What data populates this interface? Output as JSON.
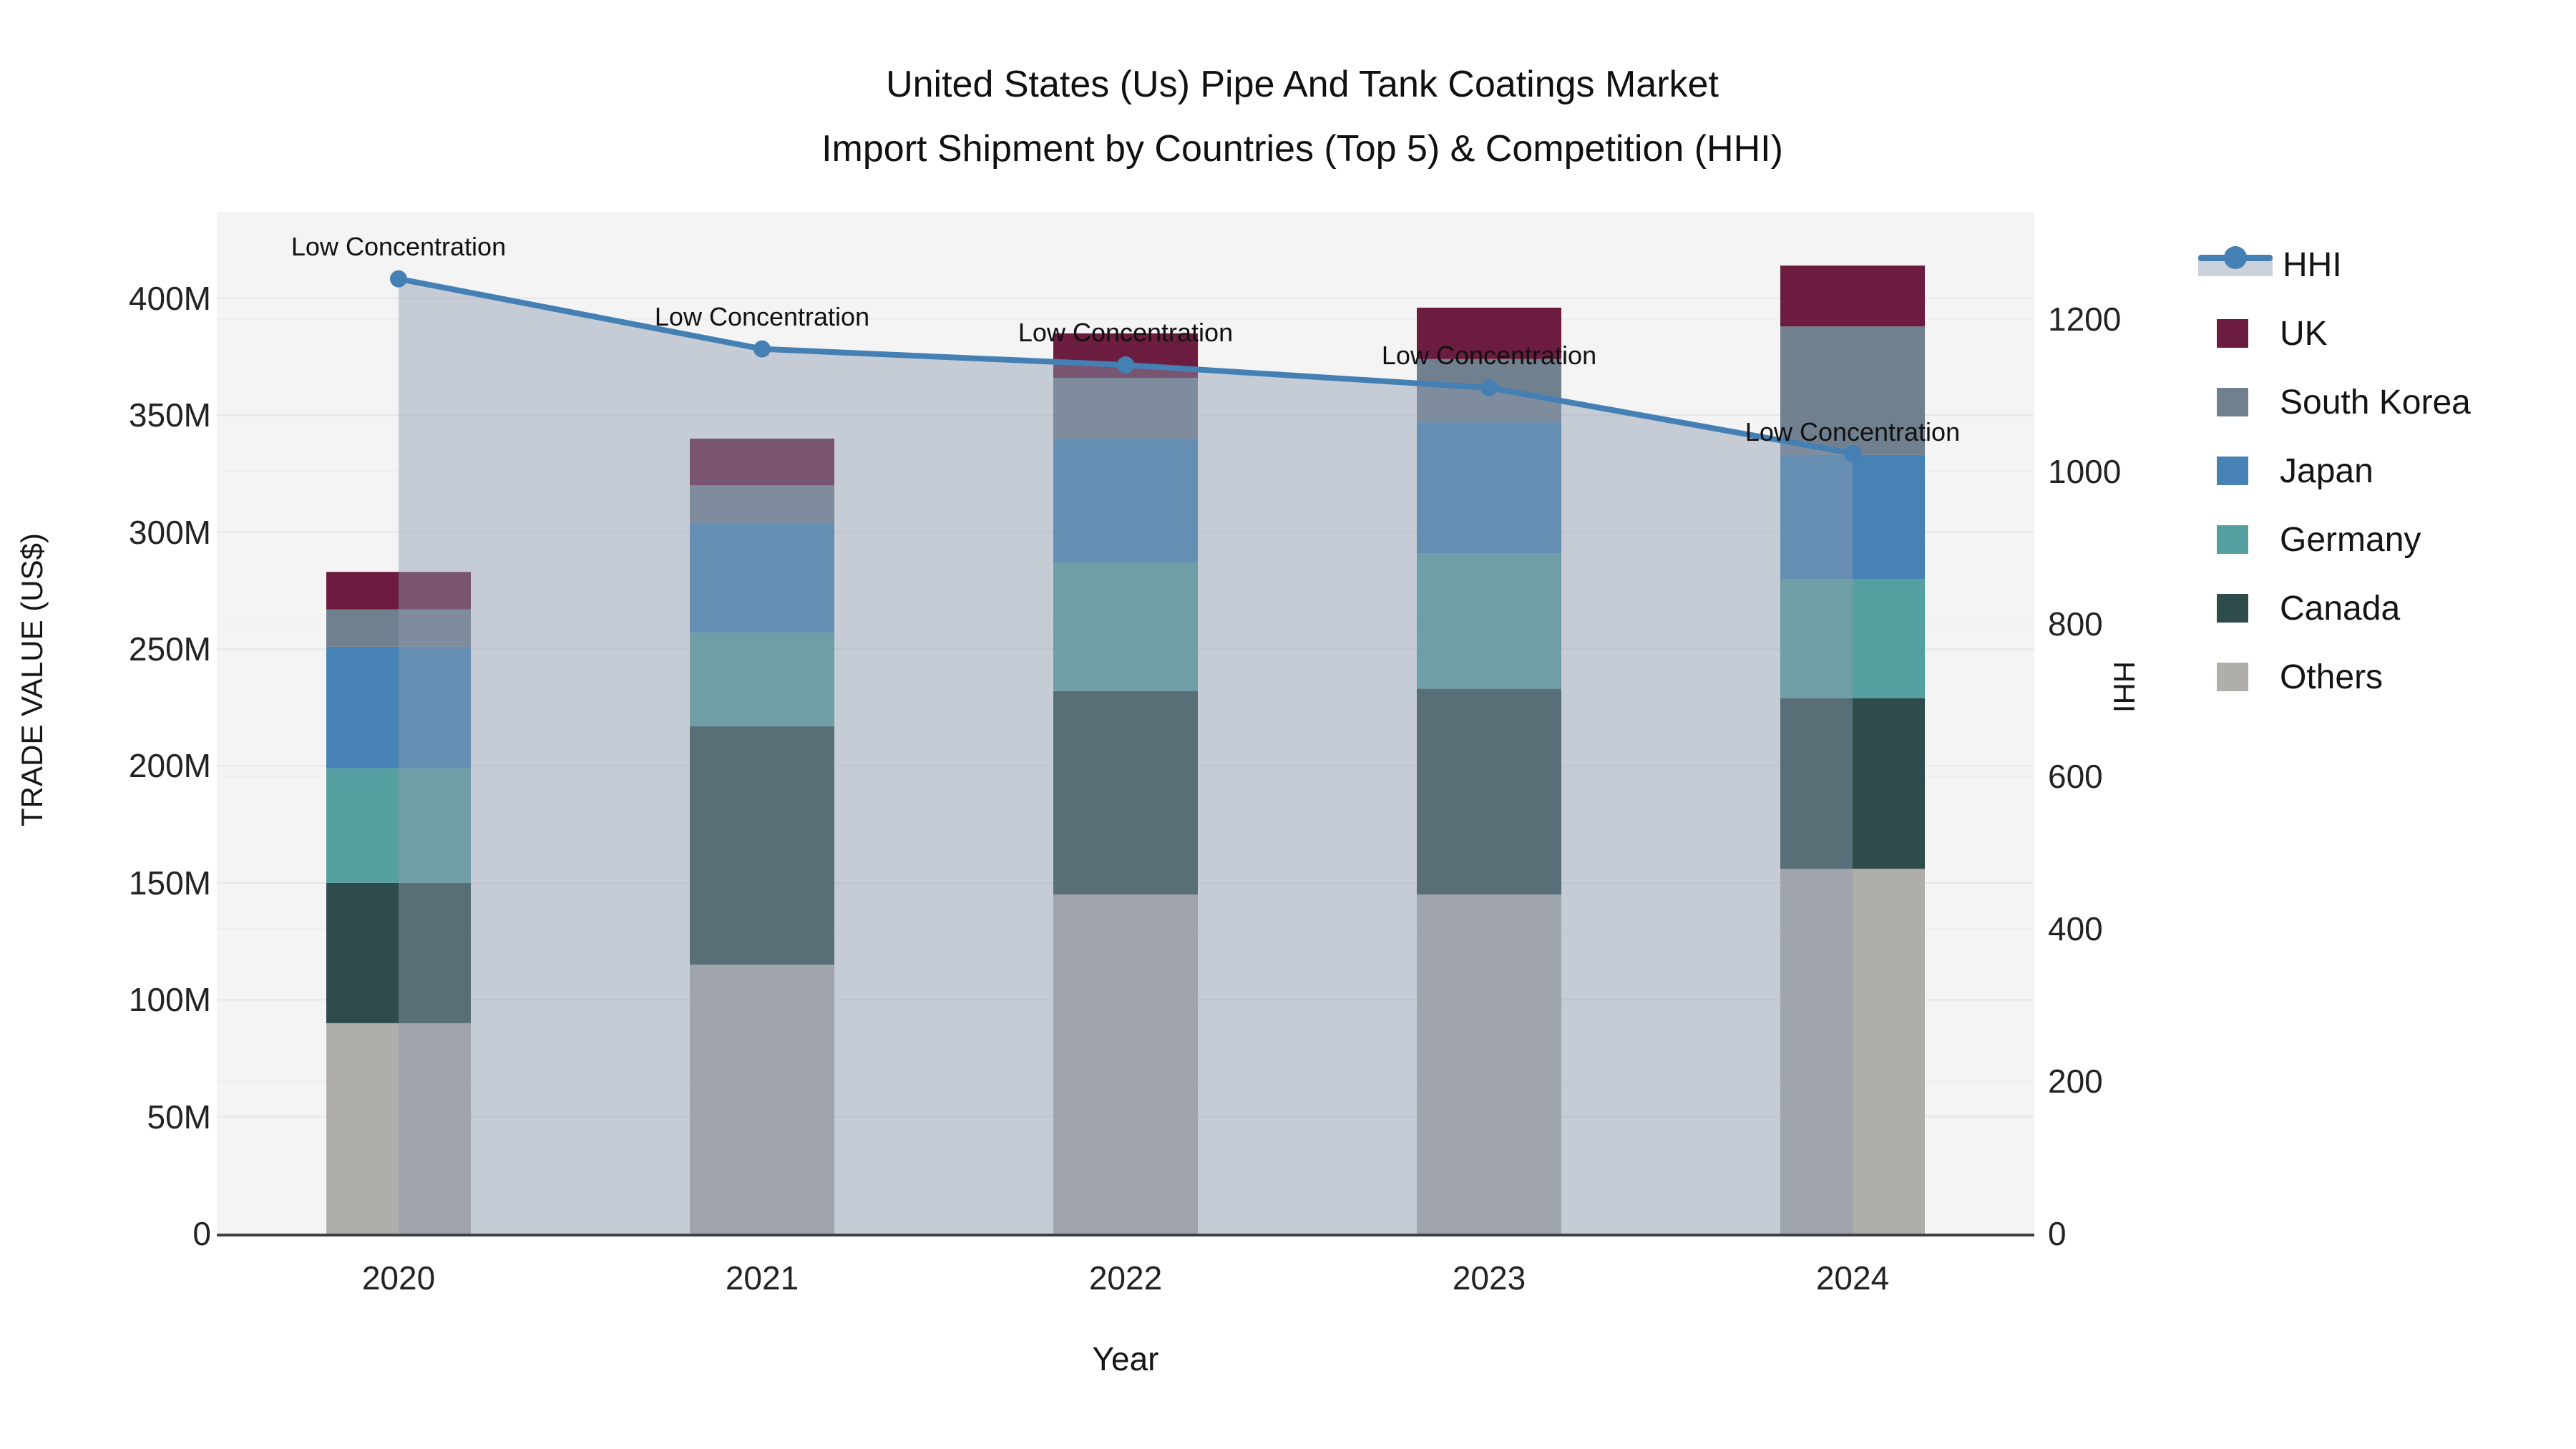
{
  "title": {
    "line1": "United States (Us) Pipe And Tank Coatings Market",
    "line2": "Import Shipment by Countries (Top 5) & Competition (HHI)"
  },
  "axes": {
    "y_left": {
      "title": "TRADE VALUE (US$)",
      "ticks": [
        {
          "label": "0",
          "value": 0
        },
        {
          "label": "50M",
          "value": 50
        },
        {
          "label": "100M",
          "value": 100
        },
        {
          "label": "150M",
          "value": 150
        },
        {
          "label": "200M",
          "value": 200
        },
        {
          "label": "250M",
          "value": 250
        },
        {
          "label": "300M",
          "value": 300
        },
        {
          "label": "350M",
          "value": 350
        },
        {
          "label": "400M",
          "value": 400
        }
      ]
    },
    "y_right": {
      "title": "HHI",
      "ticks": [
        {
          "label": "0",
          "value": 0
        },
        {
          "label": "200",
          "value": 200
        },
        {
          "label": "400",
          "value": 400
        },
        {
          "label": "600",
          "value": 600
        },
        {
          "label": "800",
          "value": 800
        },
        {
          "label": "1000",
          "value": 1000
        },
        {
          "label": "1200",
          "value": 1200
        }
      ]
    },
    "x": {
      "title": "Year",
      "categories": [
        "2020",
        "2021",
        "2022",
        "2023",
        "2024"
      ]
    }
  },
  "legend_order": [
    "HHI",
    "UK",
    "South Korea",
    "Japan",
    "Germany",
    "Canada",
    "Others"
  ],
  "annotation_text": "Low Concentration",
  "colors": {
    "uk": "#6B1C3F",
    "south_korea": "#71808F",
    "japan": "#4682B4",
    "germany": "#56A0A1",
    "canada": "#2E4C4B",
    "others": "#B0AEAB",
    "hhi_line": "#4480B4",
    "area_fill": "rgba(142,155,175,0.45)",
    "plot_bg": "#F4F4F5",
    "grid_major": "#E4E6EA",
    "grid_minor": "#EDEEF1",
    "axis_line": "#3F3F3F"
  },
  "chart_data": {
    "type": "combo: stacked-bar (left axis, M US$) + line-with-area (right axis, HHI)",
    "categories": [
      "2020",
      "2021",
      "2022",
      "2023",
      "2024"
    ],
    "value_unit": "M US$ (trade value)",
    "series": [
      {
        "name": "Others",
        "color_key": "others",
        "values": [
          90,
          115,
          145,
          145,
          156
        ]
      },
      {
        "name": "Canada",
        "color_key": "canada",
        "values": [
          60,
          102,
          87,
          88,
          73
        ]
      },
      {
        "name": "Germany",
        "color_key": "germany",
        "values": [
          49,
          40,
          55,
          58,
          51
        ]
      },
      {
        "name": "Japan",
        "color_key": "japan",
        "values": [
          52,
          47,
          53,
          56,
          53
        ]
      },
      {
        "name": "South Korea",
        "color_key": "south_korea",
        "values": [
          16,
          16,
          26,
          27,
          55
        ]
      },
      {
        "name": "UK",
        "color_key": "uk",
        "values": [
          16,
          20,
          19,
          22,
          26
        ]
      }
    ],
    "totals": [
      283,
      340,
      385,
      396,
      414
    ],
    "line": {
      "name": "HHI",
      "axis": "right",
      "color_key": "hhi_line",
      "values": [
        1253,
        1161,
        1140,
        1110,
        1024
      ],
      "annotations": [
        "Low Concentration",
        "Low Concentration",
        "Low Concentration",
        "Low Concentration",
        "Low Concentration"
      ]
    },
    "xlabel": "Year",
    "ylabel": "TRADE VALUE (US$)",
    "y2label": "HHI",
    "ylim": [
      0,
      437
    ],
    "y2lim": [
      0,
      1341
    ],
    "grid": "on",
    "legend_position": "right"
  }
}
